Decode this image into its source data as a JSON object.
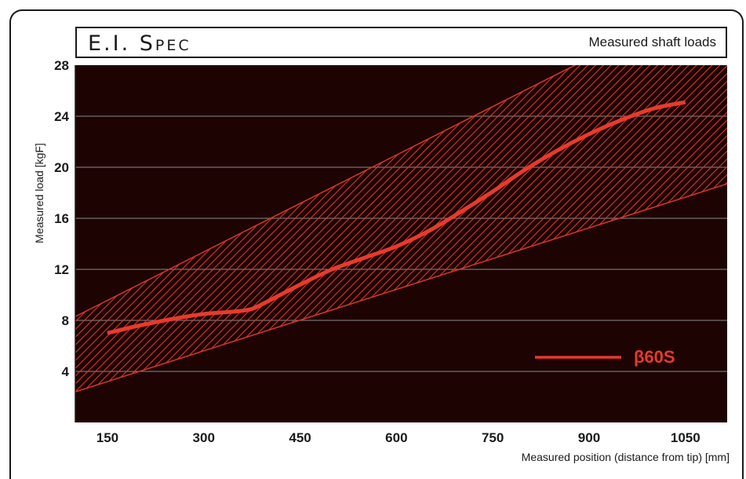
{
  "header": {
    "title": "E.I. Spec",
    "subtitle": "Measured shaft loads"
  },
  "colors": {
    "plot_background": "#1e0303",
    "accent": "#e83a2c",
    "band_hatch": "#d8372a",
    "gridline": "#8a8a8a",
    "text": "#1a1a1a"
  },
  "chart_data": {
    "type": "line",
    "title": "E.I. Spec",
    "subtitle": "Measured shaft loads",
    "xlabel": "Measured position (distance from tip) [mm]",
    "ylabel": "Measured load [kgF]",
    "xlim": [
      100,
      1115
    ],
    "ylim": [
      0,
      28
    ],
    "x_ticks": [
      150,
      300,
      450,
      600,
      750,
      900,
      1050
    ],
    "y_ticks": [
      4,
      8,
      12,
      16,
      20,
      24,
      28
    ],
    "grid": "horizontal",
    "legend_position": "bottom-right",
    "series": [
      {
        "name": "β60S",
        "x": [
          150,
          200,
          250,
          300,
          350,
          375,
          400,
          450,
          500,
          550,
          600,
          650,
          700,
          750,
          800,
          850,
          900,
          950,
          1000,
          1050
        ],
        "y": [
          7.0,
          7.6,
          8.1,
          8.5,
          8.7,
          8.9,
          9.5,
          10.8,
          12.0,
          12.9,
          13.8,
          15.0,
          16.5,
          18.1,
          19.8,
          21.3,
          22.6,
          23.7,
          24.6,
          25.1
        ]
      }
    ],
    "band": {
      "x": [
        100,
        1115
      ],
      "lower": [
        2.4,
        18.7
      ],
      "upper": [
        8.3,
        34.0
      ]
    }
  }
}
